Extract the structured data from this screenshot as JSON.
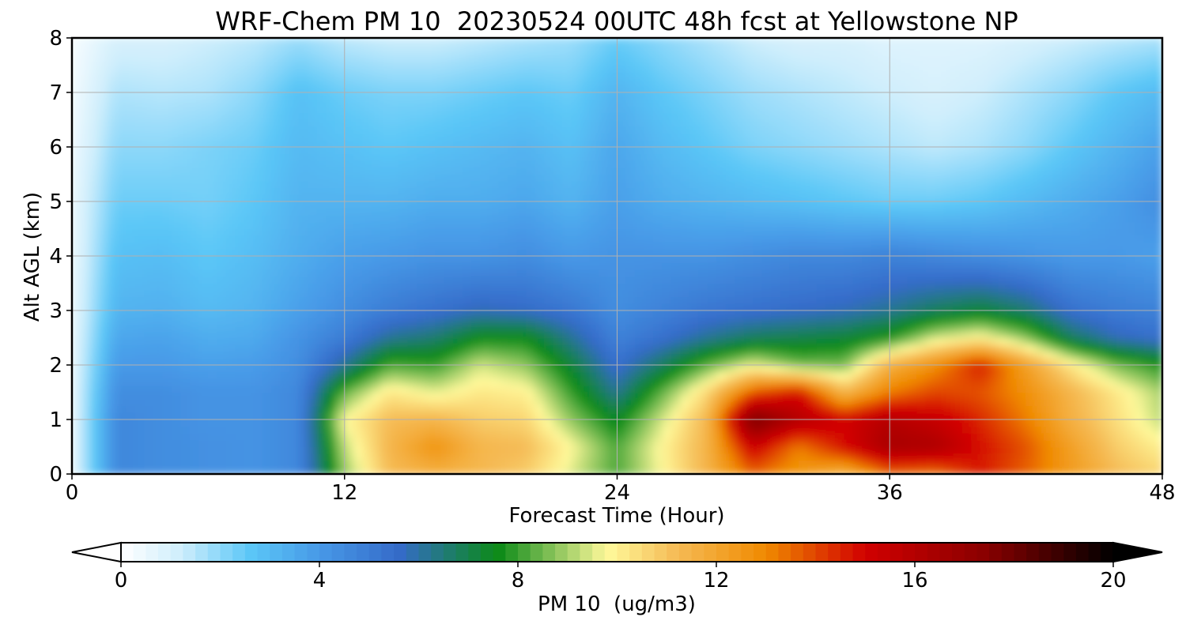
{
  "chart_data": {
    "type": "heatmap",
    "title": "WRF-Chem PM 10  20230524 00UTC 48h fcst at Yellowstone NP",
    "xlabel": "Forecast Time (Hour)",
    "ylabel": "Alt AGL (km)",
    "xlim": [
      0,
      48
    ],
    "ylim": [
      0,
      8
    ],
    "x_ticks": [
      "0",
      "12",
      "24",
      "36",
      "48"
    ],
    "y_ticks": [
      "0",
      "1",
      "2",
      "3",
      "4",
      "5",
      "6",
      "7",
      "8"
    ],
    "grid": true,
    "colorbar": {
      "label": "PM 10  (ug/m3)",
      "orientation": "horizontal",
      "placement": "bottom",
      "range": [
        0,
        20
      ],
      "ticks": [
        "0",
        "4",
        "8",
        "12",
        "16",
        "20"
      ],
      "extend": "both"
    },
    "x": [
      0,
      2,
      4,
      6,
      8,
      10,
      12,
      14,
      16,
      18,
      20,
      22,
      24,
      26,
      28,
      30,
      32,
      34,
      36,
      38,
      40,
      42,
      44,
      46,
      48
    ],
    "y": [
      0,
      0.5,
      1,
      1.5,
      2,
      2.5,
      3,
      4,
      5,
      6,
      7,
      8
    ],
    "z": [
      [
        0.5,
        4.6,
        4.4,
        4.3,
        4.2,
        4.6,
        8.8,
        11.2,
        11.6,
        11.3,
        10.8,
        9.5,
        8.2,
        9.8,
        11.5,
        13.5,
        12.5,
        11.6,
        13.4,
        13.2,
        14.6,
        13.6,
        12.4,
        11.2,
        10.6
      ],
      [
        0.5,
        4.6,
        4.4,
        4.3,
        4.2,
        4.6,
        9.2,
        11.4,
        12.6,
        11.4,
        11.2,
        9.8,
        8.2,
        9.9,
        11.5,
        15.2,
        13.2,
        14.8,
        16.4,
        16.2,
        14.8,
        13.8,
        12.2,
        10.8,
        10.0
      ],
      [
        0.5,
        4.6,
        4.4,
        4.2,
        4.2,
        4.6,
        9.8,
        11.2,
        11.4,
        10.8,
        10.6,
        8.8,
        7.4,
        9.4,
        11.4,
        17.8,
        16.0,
        15.0,
        16.0,
        15.4,
        14.4,
        13.2,
        11.6,
        10.4,
        9.2
      ],
      [
        0.5,
        4.4,
        4.4,
        4.2,
        4.2,
        4.6,
        8.4,
        10.2,
        9.6,
        10.2,
        10.0,
        8.0,
        6.2,
        8.4,
        10.6,
        13.8,
        14.8,
        11.4,
        13.2,
        14.0,
        13.8,
        12.8,
        11.4,
        10.2,
        9.0
      ],
      [
        0.5,
        4.0,
        4.0,
        3.8,
        3.9,
        4.4,
        6.2,
        8.2,
        8.0,
        9.4,
        8.8,
        7.2,
        5.4,
        6.8,
        8.4,
        9.6,
        8.6,
        8.6,
        11.6,
        12.8,
        14.6,
        12.2,
        10.2,
        8.6,
        7.8
      ],
      [
        0.5,
        3.6,
        3.7,
        3.4,
        3.5,
        4.2,
        5.0,
        6.2,
        6.6,
        7.6,
        7.6,
        6.2,
        4.8,
        5.4,
        6.2,
        6.8,
        7.0,
        7.2,
        7.8,
        9.4,
        10.0,
        8.8,
        6.8,
        5.8,
        5.4
      ],
      [
        0.5,
        3.2,
        3.3,
        3.0,
        3.2,
        3.8,
        4.4,
        5.0,
        5.4,
        5.8,
        5.6,
        5.2,
        4.4,
        4.8,
        5.2,
        5.4,
        5.6,
        5.8,
        6.2,
        6.8,
        7.2,
        6.6,
        5.4,
        5.0,
        4.8
      ],
      [
        0.5,
        2.8,
        2.9,
        2.6,
        2.9,
        3.4,
        3.8,
        4.0,
        4.2,
        4.2,
        4.4,
        4.0,
        4.2,
        4.2,
        4.2,
        4.4,
        4.6,
        4.6,
        4.8,
        4.6,
        4.4,
        4.2,
        4.0,
        4.0,
        3.8
      ],
      [
        0.5,
        2.4,
        2.4,
        2.3,
        2.6,
        3.2,
        3.2,
        3.2,
        3.4,
        3.4,
        3.6,
        3.2,
        3.8,
        3.4,
        3.2,
        3.0,
        2.8,
        2.6,
        2.4,
        2.4,
        2.6,
        3.0,
        3.4,
        3.8,
        4.4
      ],
      [
        0.4,
        2.0,
        2.0,
        2.2,
        2.4,
        3.0,
        2.8,
        2.6,
        2.8,
        3.0,
        3.2,
        2.8,
        3.6,
        3.0,
        2.6,
        2.2,
        2.0,
        1.8,
        1.6,
        1.4,
        1.6,
        2.0,
        2.6,
        3.2,
        3.8
      ],
      [
        0.3,
        1.6,
        1.5,
        1.6,
        2.0,
        2.8,
        2.4,
        2.2,
        2.2,
        2.4,
        2.6,
        2.4,
        3.2,
        2.6,
        2.2,
        1.8,
        1.6,
        1.4,
        1.2,
        1.0,
        1.2,
        1.6,
        2.0,
        2.6,
        3.0
      ],
      [
        0.2,
        1.0,
        1.0,
        1.2,
        1.4,
        1.8,
        1.4,
        1.2,
        1.2,
        1.4,
        1.6,
        1.8,
        2.4,
        2.0,
        1.6,
        1.2,
        1.0,
        1.0,
        0.8,
        0.8,
        0.8,
        1.0,
        1.2,
        1.4,
        1.6
      ]
    ]
  },
  "colormap_stops": [
    {
      "v": 0,
      "c": "#ffffff"
    },
    {
      "v": 1.2,
      "c": "#cfeefc"
    },
    {
      "v": 2.6,
      "c": "#5bc7f7"
    },
    {
      "v": 4.0,
      "c": "#4799e7"
    },
    {
      "v": 5.6,
      "c": "#356bc9"
    },
    {
      "v": 6.8,
      "c": "#1a7f5c"
    },
    {
      "v": 7.6,
      "c": "#0c8a17"
    },
    {
      "v": 9.8,
      "c": "#fff99b"
    },
    {
      "v": 11.2,
      "c": "#f5bb55"
    },
    {
      "v": 13.0,
      "c": "#f08a00"
    },
    {
      "v": 15.0,
      "c": "#d10000"
    },
    {
      "v": 17.4,
      "c": "#8a0000"
    },
    {
      "v": 20.0,
      "c": "#000000"
    }
  ]
}
